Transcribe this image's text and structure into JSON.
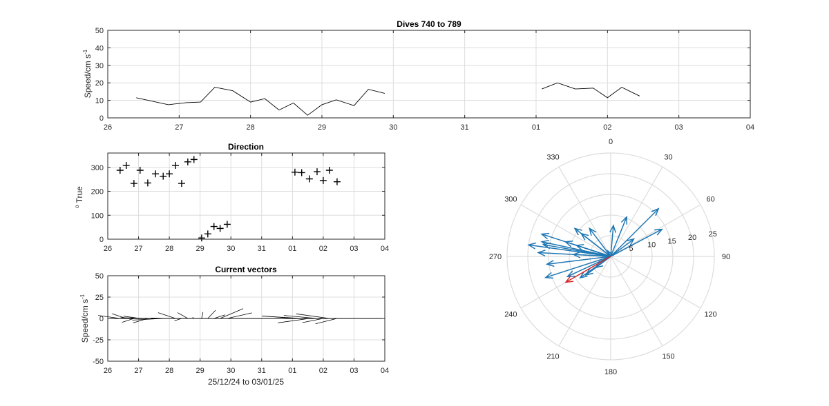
{
  "figure": {
    "xtick_labels": [
      "26",
      "27",
      "28",
      "29",
      "30",
      "31",
      "01",
      "02",
      "03",
      "04"
    ],
    "bottom_xlabel": "25/12/24 to 03/01/25"
  },
  "colors": {
    "line": "#000000",
    "grid": "#dcdcdc",
    "axes": "#262626",
    "vector_blue": "#1f77b4",
    "vector_red": "#d62728"
  },
  "chart_data": [
    {
      "id": "speed",
      "type": "line",
      "title": "Dives 740 to 789",
      "ylabel": "Speed/cm s",
      "ylabel_superscript": "-1",
      "xlim": [
        26,
        35
      ],
      "ylim": [
        0,
        50
      ],
      "yticks": [
        0,
        10,
        20,
        30,
        40,
        50
      ],
      "grid": true,
      "segments": [
        {
          "x": [
            26.4,
            26.85,
            27.1,
            27.3,
            27.5,
            27.75,
            28.0,
            28.2,
            28.4,
            28.6,
            28.8,
            29.0,
            29.2,
            29.45,
            29.65,
            29.88
          ],
          "y": [
            11.5,
            7.5,
            8.7,
            9,
            17.5,
            15.5,
            9,
            11,
            4.5,
            8.5,
            1.5,
            7.5,
            10.3,
            7,
            16.3,
            14
          ]
        },
        {
          "x": [
            32.08,
            32.3,
            32.55,
            32.8,
            33.0,
            33.2,
            33.45
          ],
          "y": [
            16.5,
            20,
            16.5,
            17,
            11.5,
            17.5,
            12.5
          ]
        }
      ]
    },
    {
      "id": "direction",
      "type": "scatter",
      "title": "Direction",
      "ylabel": "True",
      "ylabel_prefix": "o",
      "xlim": [
        26,
        35
      ],
      "ylim": [
        0,
        360
      ],
      "yticks": [
        0,
        100,
        200,
        300
      ],
      "grid": true,
      "marker": "+",
      "x": [
        26.4,
        26.6,
        26.85,
        27.05,
        27.3,
        27.55,
        27.8,
        28.0,
        28.2,
        28.4,
        28.6,
        28.8,
        29.05,
        29.25,
        29.45,
        29.65,
        29.88,
        32.08,
        32.3,
        32.55,
        32.8,
        33.0,
        33.2,
        33.45
      ],
      "y": [
        288,
        308,
        233,
        288,
        235,
        273,
        263,
        273,
        308,
        233,
        323,
        333,
        5,
        22,
        53,
        45,
        62,
        280,
        278,
        252,
        282,
        245,
        288,
        240
      ]
    },
    {
      "id": "vectors",
      "type": "line",
      "title": "Current vectors",
      "ylabel": "Speed/cm s",
      "ylabel_superscript": "-1",
      "xlim": [
        26,
        35
      ],
      "ylim": [
        -50,
        50
      ],
      "yticks": [
        -50,
        -25,
        0,
        25,
        50
      ],
      "ytick_labels": [
        "-50",
        "-25",
        "0",
        "25",
        "50"
      ],
      "grid": true,
      "time": [
        26.4,
        26.6,
        26.85,
        27.05,
        27.3,
        27.55,
        27.8,
        28.0,
        28.2,
        28.4,
        28.6,
        28.8,
        29.05,
        29.25,
        29.45,
        29.65,
        29.88,
        32.08,
        32.3,
        32.55,
        32.8,
        33.0,
        33.2,
        33.45
      ],
      "speed": [
        11.5,
        9,
        7.5,
        8.7,
        9,
        17.5,
        15.5,
        9,
        11,
        4.5,
        8.5,
        1.5,
        7.5,
        10.3,
        7,
        16.3,
        14,
        16.5,
        20,
        16.5,
        17,
        11.5,
        17.5,
        12.5
      ],
      "direction": [
        288,
        308,
        233,
        288,
        235,
        273,
        263,
        273,
        308,
        233,
        323,
        333,
        5,
        22,
        53,
        45,
        62,
        280,
        278,
        252,
        282,
        245,
        288,
        240
      ]
    },
    {
      "id": "polar",
      "type": "polar",
      "rlim": [
        0,
        25
      ],
      "rticks": [
        5,
        10,
        15,
        20,
        25
      ],
      "theta_labels": [
        "0",
        "30",
        "60",
        "90",
        "120",
        "150",
        "180",
        "210",
        "240",
        "270",
        "300",
        "330"
      ],
      "theta_zero": "top",
      "theta_direction": "clockwise",
      "highlight_index": 23
    }
  ]
}
